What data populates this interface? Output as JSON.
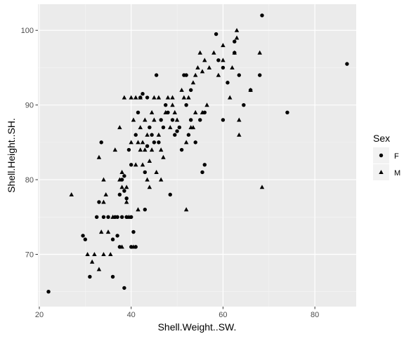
{
  "chart_data": {
    "type": "scatter",
    "xlabel": "Shell.Weight..SW.",
    "ylabel": "Shell.Height..SH.",
    "xlim": [
      19.7,
      89.0
    ],
    "ylim": [
      63.0,
      103.5
    ],
    "x_ticks": [
      20,
      40,
      60,
      80
    ],
    "y_ticks": [
      70,
      80,
      90,
      100
    ],
    "grid": true,
    "legend": {
      "title": "Sex",
      "placement": "right",
      "entries": [
        {
          "label": "F",
          "shape": "circle"
        },
        {
          "label": "M",
          "shape": "triangle"
        }
      ]
    },
    "colors": {
      "panel": "#ebebeb",
      "grid_major": "#ffffff",
      "point": "#000000",
      "tick_text": "#4d4d4d"
    },
    "series": [
      {
        "key": "F",
        "shape": "circle",
        "points": [
          [
            22.0,
            65.0
          ],
          [
            29.5,
            72.5
          ],
          [
            30.0,
            72.0
          ],
          [
            31.0,
            67.0
          ],
          [
            32.5,
            75.0
          ],
          [
            33.0,
            77.0
          ],
          [
            33.5,
            85.0
          ],
          [
            34.0,
            75.0
          ],
          [
            35.0,
            75.0
          ],
          [
            36.0,
            72.0
          ],
          [
            36.0,
            67.0
          ],
          [
            36.5,
            75.0
          ],
          [
            37.0,
            72.5
          ],
          [
            37.0,
            75.0
          ],
          [
            37.5,
            71.0
          ],
          [
            37.5,
            78.0
          ],
          [
            38.0,
            75.0
          ],
          [
            38.0,
            80.0
          ],
          [
            38.5,
            65.5
          ],
          [
            38.5,
            78.5
          ],
          [
            38.5,
            80.5
          ],
          [
            39.0,
            77.5
          ],
          [
            39.0,
            75.0
          ],
          [
            39.5,
            84.0
          ],
          [
            40.0,
            82.0
          ],
          [
            40.0,
            75.0
          ],
          [
            40.0,
            71.0
          ],
          [
            40.5,
            73.0
          ],
          [
            41.0,
            86.0
          ],
          [
            41.0,
            71.0
          ],
          [
            41.5,
            89.0
          ],
          [
            42.0,
            91.0
          ],
          [
            42.5,
            91.5
          ],
          [
            43.0,
            81.0
          ],
          [
            43.0,
            76.0
          ],
          [
            43.5,
            91.0
          ],
          [
            43.5,
            84.5
          ],
          [
            44.0,
            87.0
          ],
          [
            44.5,
            86.0
          ],
          [
            45.0,
            85.0
          ],
          [
            45.5,
            94.0
          ],
          [
            46.0,
            85.0
          ],
          [
            46.5,
            88.0
          ],
          [
            47.0,
            87.0
          ],
          [
            47.5,
            90.0
          ],
          [
            48.0,
            89.0
          ],
          [
            48.5,
            78.0
          ],
          [
            49.0,
            88.0
          ],
          [
            49.5,
            86.0
          ],
          [
            50.0,
            86.5
          ],
          [
            50.5,
            87.0
          ],
          [
            51.0,
            84.0
          ],
          [
            51.5,
            94.0
          ],
          [
            52.0,
            94.0
          ],
          [
            52.0,
            90.0
          ],
          [
            52.5,
            86.0
          ],
          [
            53.0,
            88.0
          ],
          [
            53.0,
            92.0
          ],
          [
            54.0,
            85.0
          ],
          [
            55.0,
            88.0
          ],
          [
            55.5,
            81.0
          ],
          [
            56.0,
            82.0
          ],
          [
            56.0,
            89.0
          ],
          [
            58.5,
            99.5
          ],
          [
            59.0,
            96.0
          ],
          [
            60.0,
            88.0
          ],
          [
            60.0,
            95.0
          ],
          [
            61.0,
            93.0
          ],
          [
            62.5,
            98.5
          ],
          [
            62.5,
            97.0
          ],
          [
            63.5,
            94.0
          ],
          [
            64.5,
            90.0
          ],
          [
            66.0,
            92.0
          ],
          [
            68.0,
            94.0
          ],
          [
            68.5,
            102.0
          ],
          [
            74.0,
            89.0
          ],
          [
            87.0,
            95.5
          ]
        ]
      },
      {
        "key": "M",
        "shape": "triangle",
        "points": [
          [
            27.0,
            78.0
          ],
          [
            30.5,
            70.0
          ],
          [
            31.5,
            69.0
          ],
          [
            32.0,
            70.0
          ],
          [
            33.0,
            68.0
          ],
          [
            33.0,
            83.0
          ],
          [
            33.5,
            73.0
          ],
          [
            34.0,
            70.0
          ],
          [
            34.0,
            77.0
          ],
          [
            34.0,
            80.0
          ],
          [
            34.5,
            78.0
          ],
          [
            35.0,
            73.0
          ],
          [
            35.5,
            70.0
          ],
          [
            36.0,
            75.0
          ],
          [
            36.5,
            84.0
          ],
          [
            37.5,
            80.0
          ],
          [
            37.5,
            87.0
          ],
          [
            38.0,
            71.0
          ],
          [
            38.0,
            79.0
          ],
          [
            38.0,
            81.0
          ],
          [
            38.5,
            91.0
          ],
          [
            39.0,
            77.0
          ],
          [
            39.0,
            79.0
          ],
          [
            39.5,
            75.0
          ],
          [
            40.0,
            85.0
          ],
          [
            40.0,
            91.0
          ],
          [
            40.5,
            88.0
          ],
          [
            40.5,
            71.0
          ],
          [
            41.0,
            82.0
          ],
          [
            41.0,
            91.0
          ],
          [
            41.5,
            76.0
          ],
          [
            41.5,
            85.0
          ],
          [
            42.0,
            84.0
          ],
          [
            42.0,
            91.0
          ],
          [
            42.0,
            87.0
          ],
          [
            42.5,
            82.0
          ],
          [
            42.5,
            85.0
          ],
          [
            43.0,
            88.0
          ],
          [
            43.0,
            84.0
          ],
          [
            43.5,
            80.0
          ],
          [
            43.5,
            86.0
          ],
          [
            44.0,
            79.0
          ],
          [
            44.0,
            82.5
          ],
          [
            44.5,
            89.0
          ],
          [
            44.5,
            84.0
          ],
          [
            45.0,
            91.0
          ],
          [
            45.0,
            88.0
          ],
          [
            45.5,
            81.0
          ],
          [
            46.0,
            86.0
          ],
          [
            46.0,
            91.0
          ],
          [
            46.5,
            84.0
          ],
          [
            46.5,
            80.0
          ],
          [
            47.0,
            83.0
          ],
          [
            47.5,
            89.0
          ],
          [
            48.0,
            91.0
          ],
          [
            48.5,
            87.0
          ],
          [
            49.0,
            90.0
          ],
          [
            49.0,
            91.0
          ],
          [
            49.5,
            89.0
          ],
          [
            50.0,
            88.0
          ],
          [
            51.0,
            92.0
          ],
          [
            51.5,
            91.0
          ],
          [
            52.0,
            85.0
          ],
          [
            52.0,
            76.0
          ],
          [
            52.5,
            91.0
          ],
          [
            53.0,
            87.0
          ],
          [
            53.5,
            93.0
          ],
          [
            53.5,
            87.0
          ],
          [
            54.0,
            89.0
          ],
          [
            54.0,
            94.0
          ],
          [
            54.5,
            95.0
          ],
          [
            55.0,
            97.0
          ],
          [
            55.5,
            94.5
          ],
          [
            55.5,
            89.0
          ],
          [
            56.0,
            96.0
          ],
          [
            56.5,
            90.0
          ],
          [
            57.0,
            95.0
          ],
          [
            58.0,
            97.0
          ],
          [
            59.0,
            94.0
          ],
          [
            60.0,
            98.0
          ],
          [
            60.0,
            96.0
          ],
          [
            61.5,
            91.0
          ],
          [
            62.0,
            95.0
          ],
          [
            62.5,
            97.0
          ],
          [
            63.0,
            100.0
          ],
          [
            63.0,
            99.0
          ],
          [
            63.5,
            86.0
          ],
          [
            63.5,
            88.0
          ],
          [
            66.0,
            92.0
          ],
          [
            68.0,
            97.0
          ],
          [
            68.5,
            79.0
          ]
        ]
      }
    ]
  }
}
